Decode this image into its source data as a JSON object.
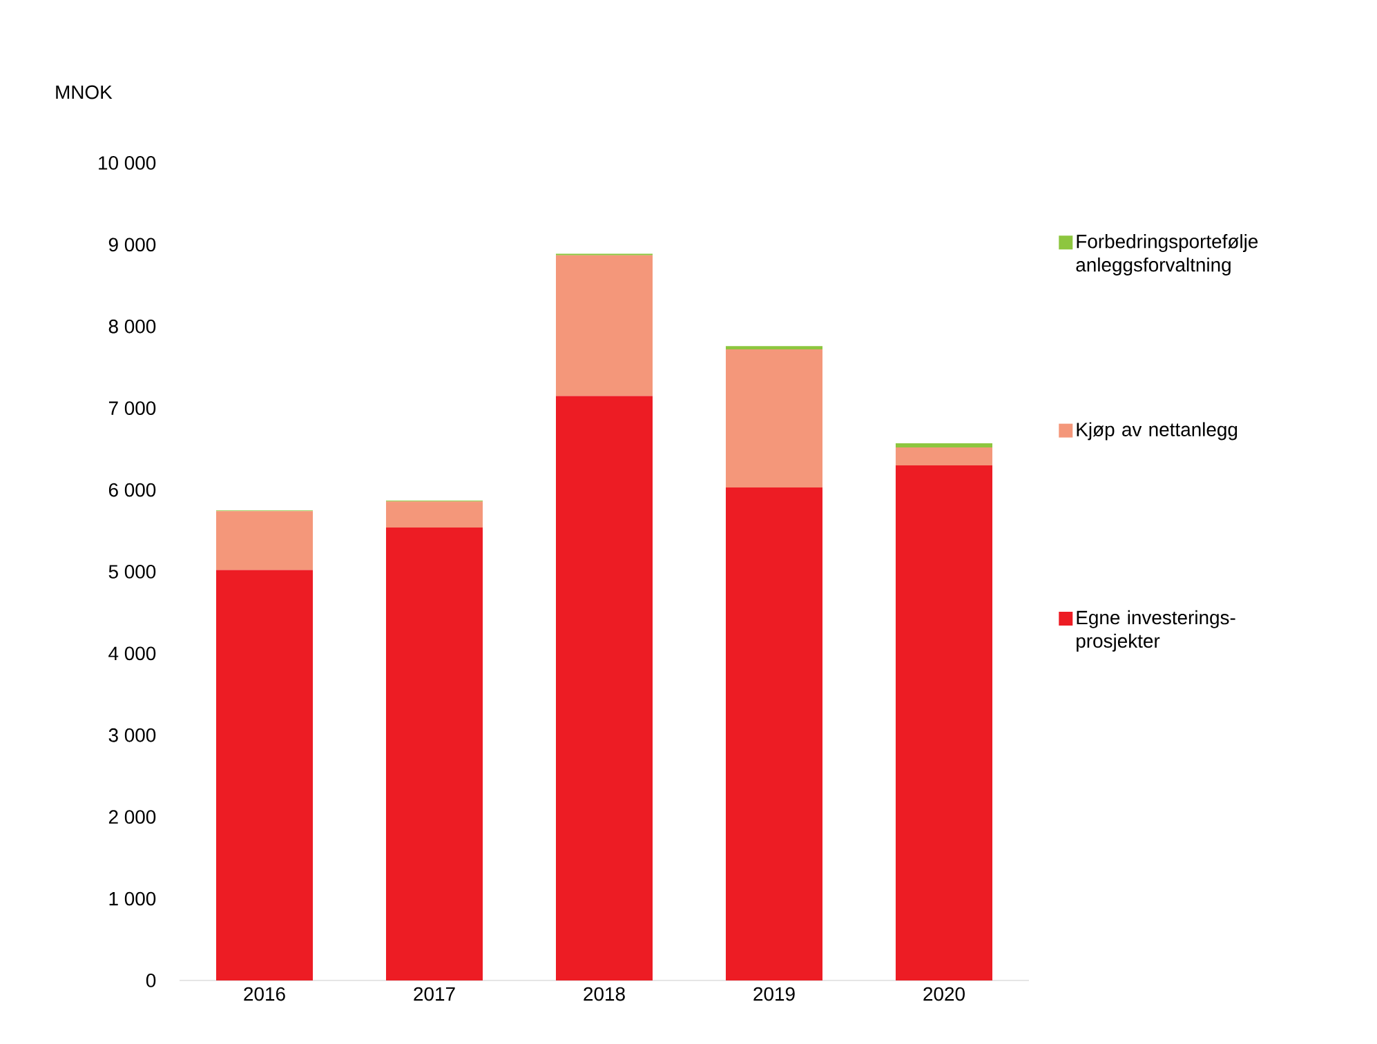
{
  "chart_data": {
    "type": "bar",
    "stacked": true,
    "ylabel": "MNOK",
    "categories": [
      "2016",
      "2017",
      "2018",
      "2019",
      "2020"
    ],
    "series": [
      {
        "name": "Egne investerings-prosjekter",
        "color": "#ed1c24",
        "values": [
          5020,
          5540,
          7150,
          6030,
          6300
        ]
      },
      {
        "name": "Kjøp av nettanlegg",
        "color": "#f4977a",
        "values": [
          720,
          320,
          1720,
          1690,
          220
        ]
      },
      {
        "name": "Forbedringsportefølje anleggsforvaltning",
        "color": "#8dc63f",
        "values": [
          10,
          10,
          20,
          40,
          50
        ]
      }
    ],
    "ylim": [
      0,
      10000
    ],
    "yticks": [
      {
        "value": 0,
        "label": "0"
      },
      {
        "value": 1000,
        "label": "1 000"
      },
      {
        "value": 2000,
        "label": "2 000"
      },
      {
        "value": 3000,
        "label": "3 000"
      },
      {
        "value": 4000,
        "label": "4 000"
      },
      {
        "value": 5000,
        "label": "5 000"
      },
      {
        "value": 6000,
        "label": "6 000"
      },
      {
        "value": 7000,
        "label": "7 000"
      },
      {
        "value": 8000,
        "label": "8 000"
      },
      {
        "value": 9000,
        "label": "9 000"
      },
      {
        "value": 10000,
        "label": "10 000"
      }
    ],
    "legend": "right"
  }
}
